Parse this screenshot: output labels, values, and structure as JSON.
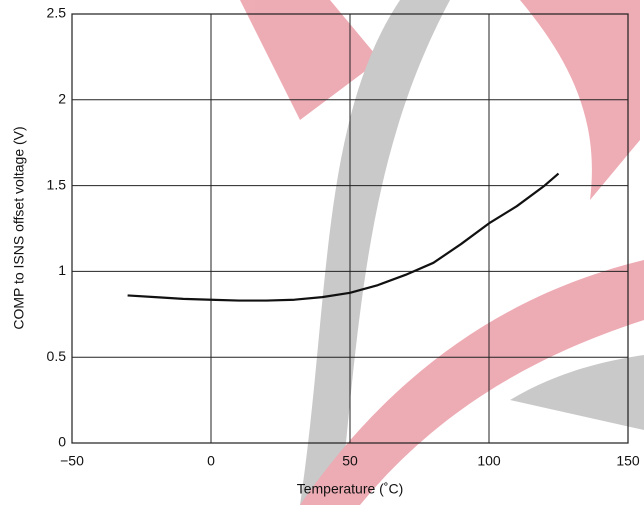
{
  "chart_data": {
    "type": "line",
    "x_label": "Temperature (˚C)",
    "y_label": "COMP to ISNS offset voltage (V)",
    "x": [
      -30,
      -20,
      -10,
      0,
      10,
      20,
      30,
      40,
      50,
      60,
      70,
      80,
      90,
      100,
      110,
      120,
      125
    ],
    "series": [
      {
        "color": "#111111",
        "values": [
          0.86,
          0.85,
          0.84,
          0.835,
          0.83,
          0.83,
          0.835,
          0.85,
          0.875,
          0.92,
          0.98,
          1.05,
          1.16,
          1.28,
          1.38,
          1.5,
          1.57
        ]
      }
    ],
    "xlim": [
      -50,
      150
    ],
    "xticks": [
      {
        "value": -50,
        "label": "−50"
      },
      0,
      50,
      100,
      150
    ],
    "ylim": [
      0,
      2.5
    ],
    "yticks": [
      0,
      0.5,
      1,
      1.5,
      2,
      2.5
    ],
    "grid": true
  }
}
